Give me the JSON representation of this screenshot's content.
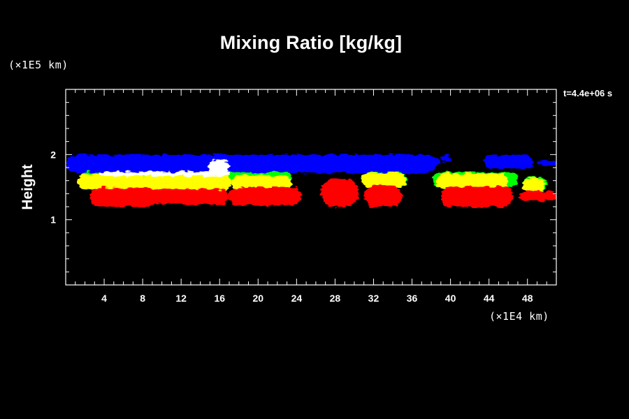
{
  "chart_data": {
    "type": "heatmap",
    "title": "Mixing Ratio [kg/kg]",
    "ylabel": "Height",
    "xlabel": "",
    "x_unit": "(×1E4 km)",
    "y_unit": "(×1E5 km)",
    "time_label": "t=4.4e+06 s",
    "xlim": [
      0,
      51
    ],
    "ylim": [
      0,
      3
    ],
    "x_ticks": [
      4,
      8,
      12,
      16,
      20,
      24,
      28,
      32,
      36,
      40,
      44,
      48
    ],
    "y_ticks": [
      1,
      2
    ],
    "x_minor_step": 1,
    "y_minor_step": 0.2,
    "layers": [
      {
        "color": "#0000ff",
        "blobs": [
          {
            "x": [
              0,
              38.5
            ],
            "y": [
              1.72,
              2.0
            ]
          },
          {
            "x": [
              37.0,
              38.8
            ],
            "y": [
              1.87,
              1.96
            ]
          },
          {
            "x": [
              39.0,
              40.0
            ],
            "y": [
              1.88,
              1.99
            ]
          },
          {
            "x": [
              43.5,
              48.6
            ],
            "y": [
              1.78,
              2.0
            ]
          },
          {
            "x": [
              49.0,
              51.0
            ],
            "y": [
              1.83,
              1.9
            ]
          }
        ]
      },
      {
        "color": "#00ff00",
        "blobs": [
          {
            "x": [
              1.5,
              23.5
            ],
            "y": [
              1.53,
              1.73
            ]
          },
          {
            "x": [
              30.8,
              35.5
            ],
            "y": [
              1.5,
              1.73
            ]
          },
          {
            "x": [
              38.2,
              47.0
            ],
            "y": [
              1.5,
              1.73
            ]
          },
          {
            "x": [
              47.5,
              50.0
            ],
            "y": [
              1.43,
              1.66
            ]
          }
        ]
      },
      {
        "color": "#ffff00",
        "blobs": [
          {
            "x": [
              1.2,
              8.2
            ],
            "y": [
              1.47,
              1.7
            ]
          },
          {
            "x": [
              7.8,
              17.2
            ],
            "y": [
              1.43,
              1.7
            ]
          },
          {
            "x": [
              17.2,
              23.5
            ],
            "y": [
              1.46,
              1.68
            ]
          },
          {
            "x": [
              30.8,
              35.4
            ],
            "y": [
              1.5,
              1.72
            ]
          },
          {
            "x": [
              38.5,
              46.0
            ],
            "y": [
              1.47,
              1.71
            ]
          },
          {
            "x": [
              47.5,
              49.8
            ],
            "y": [
              1.42,
              1.65
            ]
          }
        ]
      },
      {
        "color": "#ffffff",
        "blobs": [
          {
            "x": [
              14.8,
              17.0
            ],
            "y": [
              1.68,
              1.91
            ]
          },
          {
            "x": [
              3.5,
              17.0
            ],
            "y": [
              1.67,
              1.74
            ]
          }
        ]
      },
      {
        "color": "#ff0000",
        "blobs": [
          {
            "x": [
              2.5,
              9.5
            ],
            "y": [
              1.2,
              1.49
            ]
          },
          {
            "x": [
              8.0,
              17.0
            ],
            "y": [
              1.24,
              1.47
            ]
          },
          {
            "x": [
              17.0,
              24.5
            ],
            "y": [
              1.22,
              1.5
            ]
          },
          {
            "x": [
              26.5,
              30.5
            ],
            "y": [
              1.2,
              1.62
            ]
          },
          {
            "x": [
              31.0,
              35.0
            ],
            "y": [
              1.2,
              1.52
            ]
          },
          {
            "x": [
              39.0,
              46.5
            ],
            "y": [
              1.2,
              1.51
            ]
          },
          {
            "x": [
              47.2,
              51.0
            ],
            "y": [
              1.29,
              1.44
            ]
          }
        ]
      }
    ],
    "grid": false
  },
  "colors": {
    "background": "#000000",
    "axes": "#ffffff",
    "text": "#ffffff"
  }
}
